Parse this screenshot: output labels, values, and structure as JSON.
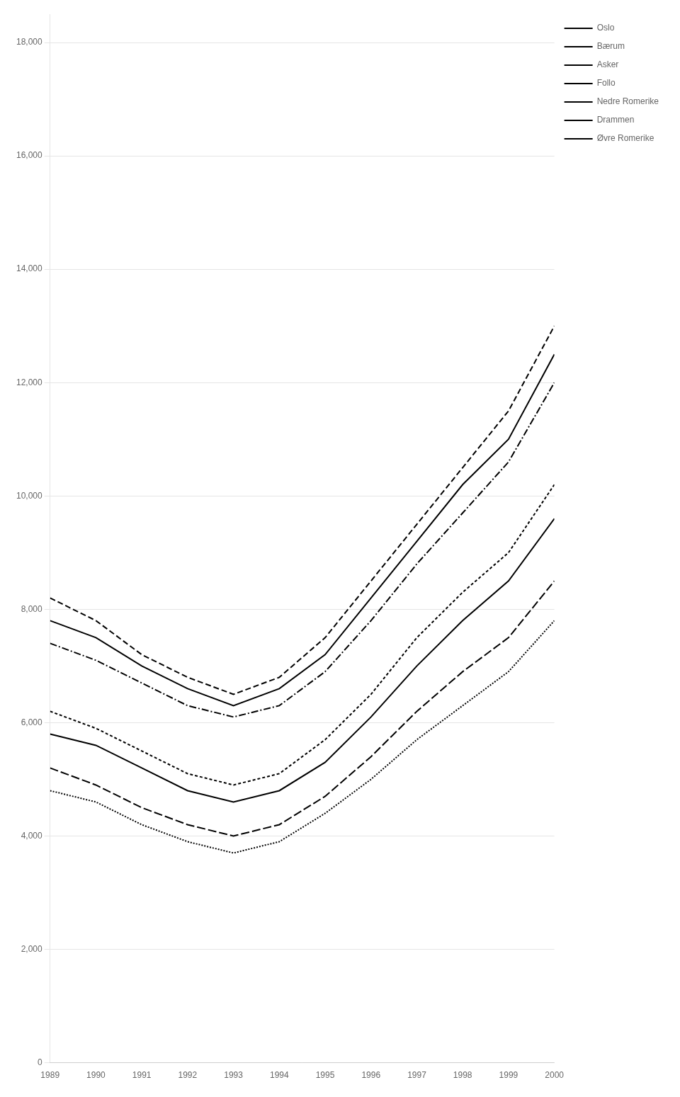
{
  "chart_data": {
    "type": "line",
    "xlim": [
      1989,
      2000
    ],
    "xticks": [
      1989,
      1990,
      1991,
      1992,
      1993,
      1994,
      1995,
      1996,
      1997,
      1998,
      1999,
      2000
    ],
    "x": [
      1989,
      1990,
      1991,
      1992,
      1993,
      1994,
      1995,
      1996,
      1997,
      1998,
      1999,
      2000
    ],
    "series": [
      {
        "name": "Oslo",
        "color": "black",
        "line_style": "dashed",
        "values": [
          8200,
          7800,
          7200,
          6800,
          6500,
          6800,
          7500,
          8500,
          9500,
          10500,
          11500,
          13000
        ]
      },
      {
        "name": "Bærum",
        "color": "black",
        "line_style": "solid",
        "values": [
          7800,
          7500,
          7000,
          6600,
          6300,
          6600,
          7200,
          8200,
          9200,
          10200,
          11000,
          12500
        ]
      },
      {
        "name": "Asker",
        "color": "black",
        "line_style": "dashdot",
        "values": [
          7400,
          7100,
          6700,
          6300,
          6100,
          6300,
          6900,
          7800,
          8800,
          9700,
          10600,
          12000
        ]
      },
      {
        "name": "Follo",
        "color": "black",
        "line_style": "short_dashed",
        "values": [
          6200,
          5900,
          5500,
          5100,
          4900,
          5100,
          5700,
          6500,
          7500,
          8300,
          9000,
          10200
        ]
      },
      {
        "name": "Nedre Romerike",
        "color": "black",
        "line_style": "solid",
        "values": [
          5800,
          5600,
          5200,
          4800,
          4600,
          4800,
          5300,
          6100,
          7000,
          7800,
          8500,
          9600
        ]
      },
      {
        "name": "Drammen",
        "color": "black",
        "line_style": "long_dashed",
        "values": [
          5200,
          4900,
          4500,
          4200,
          4000,
          4200,
          4700,
          5400,
          6200,
          6900,
          7500,
          8500
        ]
      },
      {
        "name": "Øvre Romerike",
        "color": "black",
        "line_style": "dotted",
        "values": [
          4800,
          4600,
          4200,
          3900,
          3700,
          3900,
          4400,
          5000,
          5700,
          6300,
          6900,
          7800
        ]
      }
    ],
    "ylim": [
      0,
      18500
    ],
    "yticks": [
      0,
      {
        "value": 2000,
        "label": "2,000"
      },
      {
        "value": 4000,
        "label": "4,000"
      },
      {
        "value": 6000,
        "label": "6,000"
      },
      {
        "value": 8000,
        "label": "8,000"
      },
      {
        "value": 10000,
        "label": "10,000"
      },
      {
        "value": 12000,
        "label": "12,000"
      },
      {
        "value": 14000,
        "label": "14,000"
      },
      {
        "value": 16000,
        "label": "16,000"
      },
      {
        "value": 18000,
        "label": "18,000"
      }
    ],
    "grid": "y",
    "legend": "right"
  }
}
